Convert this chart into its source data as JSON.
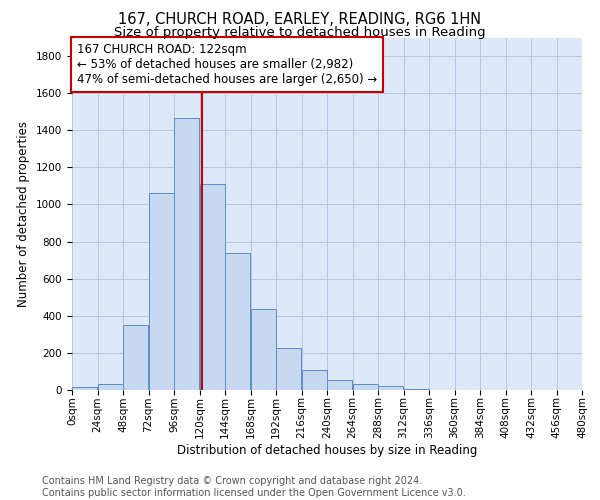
{
  "title": "167, CHURCH ROAD, EARLEY, READING, RG6 1HN",
  "subtitle": "Size of property relative to detached houses in Reading",
  "xlabel": "Distribution of detached houses by size in Reading",
  "ylabel": "Number of detached properties",
  "bar_color": "#c6d9f1",
  "bar_edge_color": "#5b8dc8",
  "property_line_x": 122,
  "property_line_color": "#cc0000",
  "annotation_line1": "167 CHURCH ROAD: 122sqm",
  "annotation_line2": "← 53% of detached houses are smaller (2,982)",
  "annotation_line3": "47% of semi-detached houses are larger (2,650) →",
  "annotation_box_color": "#ffffff",
  "annotation_box_edge_color": "#cc0000",
  "bins_left": [
    0,
    24,
    48,
    72,
    96,
    120,
    144,
    168,
    192,
    216,
    240,
    264,
    288,
    312,
    336,
    360,
    384,
    408,
    432,
    456
  ],
  "bin_width": 24,
  "counts": [
    15,
    30,
    350,
    1060,
    1465,
    1110,
    740,
    435,
    225,
    110,
    55,
    30,
    20,
    5,
    2,
    1,
    0,
    0,
    0,
    0
  ],
  "xlim": [
    0,
    480
  ],
  "ylim": [
    0,
    1900
  ],
  "yticks": [
    0,
    200,
    400,
    600,
    800,
    1000,
    1200,
    1400,
    1600,
    1800
  ],
  "xtick_labels": [
    "0sqm",
    "24sqm",
    "48sqm",
    "72sqm",
    "96sqm",
    "120sqm",
    "144sqm",
    "168sqm",
    "192sqm",
    "216sqm",
    "240sqm",
    "264sqm",
    "288sqm",
    "312sqm",
    "336sqm",
    "360sqm",
    "384sqm",
    "408sqm",
    "432sqm",
    "456sqm",
    "480sqm"
  ],
  "footer_line1": "Contains HM Land Registry data © Crown copyright and database right 2024.",
  "footer_line2": "Contains public sector information licensed under the Open Government Licence v3.0.",
  "background_color": "#ffffff",
  "plot_bg_color": "#dde8f8",
  "grid_color": "#b8c8e0",
  "title_fontsize": 10.5,
  "subtitle_fontsize": 9.5,
  "axis_label_fontsize": 8.5,
  "tick_fontsize": 7.5,
  "footer_fontsize": 7,
  "annotation_fontsize": 8.5
}
